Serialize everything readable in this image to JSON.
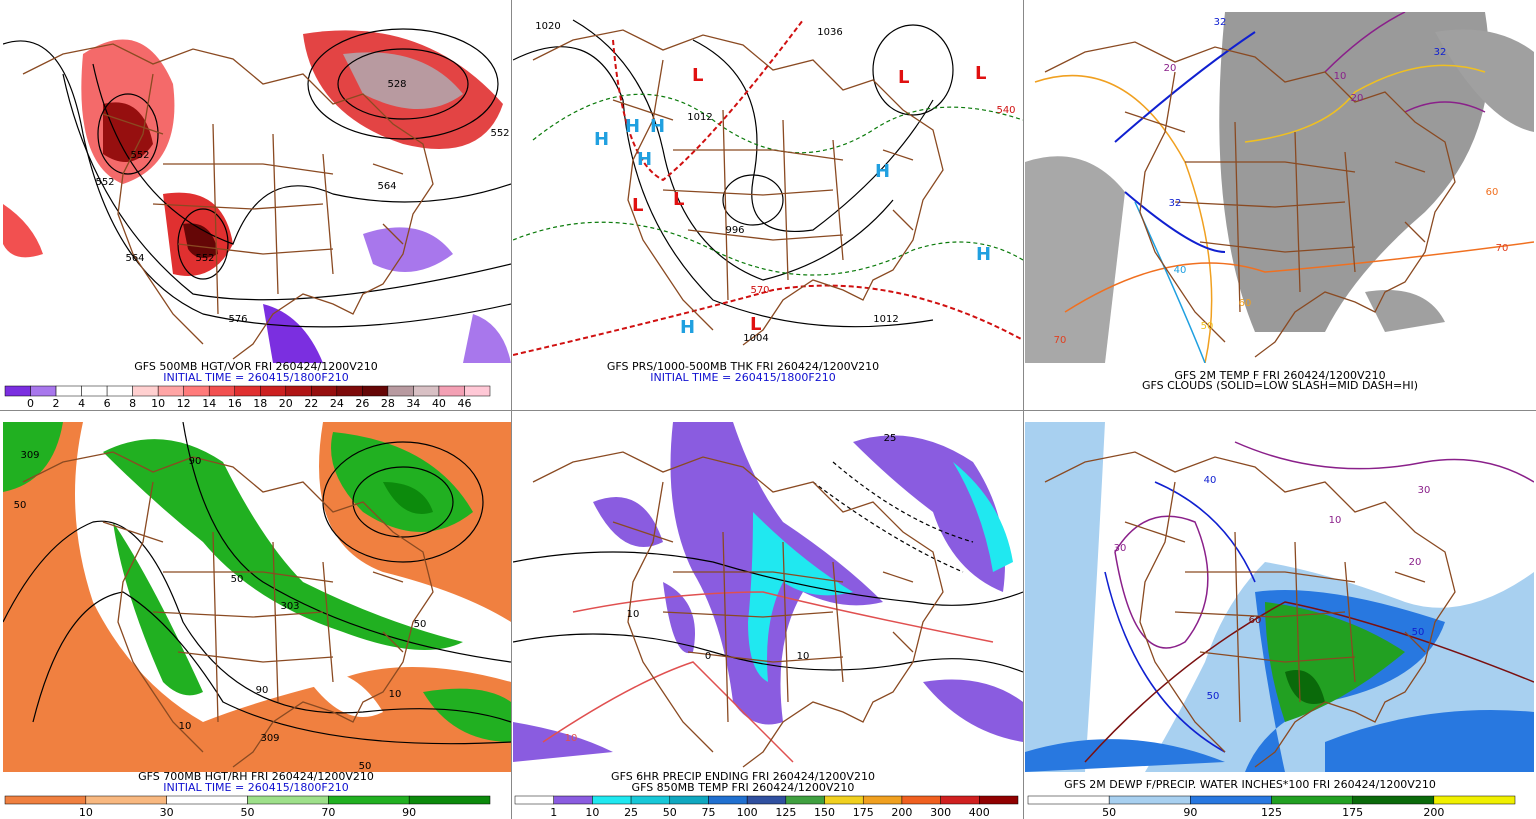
{
  "panels": [
    {
      "caption": [
        "GFS 500MB HGT/VOR FRI 260424/1200V210",
        "INITIAL TIME = 260415/1800F210"
      ],
      "colorbar": {
        "colors": [
          "#7b2fe0",
          "#a877ec",
          "#ffffff",
          "#ffffff",
          "#ffffff",
          "#ffd0d0",
          "#ffa5a5",
          "#ff7b7b",
          "#f25050",
          "#e03030",
          "#cc2020",
          "#b01515",
          "#960f0f",
          "#7d0a0a",
          "#650606",
          "#b89aa0",
          "#d8c0c4",
          "#f3a0b4",
          "#ffc8d6"
        ],
        "labels": [
          "0",
          "2",
          "4",
          "6",
          "8",
          "10",
          "12",
          "14",
          "16",
          "18",
          "20",
          "22",
          "24",
          "26",
          "28",
          "34",
          "40",
          "46"
        ]
      },
      "labels": [
        "552",
        "564",
        "552",
        "576",
        "564",
        "552",
        "528",
        "552"
      ]
    },
    {
      "caption": [
        "GFS PRS/1000-500MB THK FRI 260424/1200V210",
        "INITIAL TIME = 260415/1800F210"
      ],
      "labels": [
        "1020",
        "L",
        "L",
        "L",
        "L",
        "L",
        "L",
        "H",
        "H",
        "H",
        "H",
        "H",
        "H",
        "H",
        "1012",
        "996",
        "1004",
        "1036",
        "1012",
        "570",
        "540"
      ]
    },
    {
      "caption": [
        "GFS 2M TEMP F FRI 260424/1200V210",
        "GFS CLOUDS (SOLID=LOW SLASH=MID DASH=HI)"
      ],
      "labels": [
        "32",
        "20",
        "10",
        "32",
        "40",
        "50",
        "60",
        "70",
        "70",
        "60",
        "20",
        "32"
      ]
    },
    {
      "caption": [
        "GFS 700MB HGT/RH FRI 260424/1200V210",
        "INITIAL TIME = 260415/1800F210"
      ],
      "colorbar": {
        "colors": [
          "#f08040",
          "#f8b880",
          "#ffffff",
          "#9ee08a",
          "#21b021",
          "#0c8a0c"
        ],
        "labels": [
          "10",
          "30",
          "50",
          "70",
          "90"
        ]
      },
      "labels": [
        "309",
        "50",
        "90",
        "50",
        "303",
        "50",
        "10",
        "90",
        "10",
        "309",
        "50"
      ]
    },
    {
      "caption": [
        "GFS 6HR PRECIP ENDING FRI 260424/1200V210",
        "GFS 850MB TEMP FRI 260424/1200V210"
      ],
      "colorbar": {
        "colors": [
          "#ffffff",
          "#8a5ce0",
          "#20e8f0",
          "#18c8d8",
          "#10a8c0",
          "#2070d0",
          "#3050a0",
          "#40a040",
          "#f0d020",
          "#f0a020",
          "#f06020",
          "#d02020",
          "#900000"
        ],
        "labels": [
          "1",
          "10",
          "25",
          "50",
          "75",
          "100",
          "125",
          "150",
          "175",
          "200",
          "300",
          "400"
        ]
      },
      "labels": [
        "25",
        "10",
        "0",
        "10",
        "10"
      ]
    },
    {
      "caption": [
        "GFS 2M DEWP F/PRECIP. WATER INCHES*100 FRI 260424/1200V210"
      ],
      "colorbar": {
        "colors": [
          "#ffffff",
          "#a8d0f0",
          "#2878e0",
          "#22a022",
          "#0a6a0a",
          "#f0f000"
        ],
        "labels": [
          "50",
          "90",
          "125",
          "175",
          "200"
        ]
      },
      "labels": [
        "30",
        "20",
        "10",
        "40",
        "50",
        "60",
        "30",
        "50"
      ]
    }
  ]
}
